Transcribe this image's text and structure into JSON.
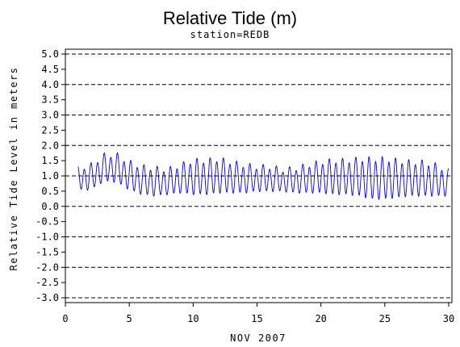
{
  "chart_data": {
    "type": "line",
    "title": "Relative Tide (m)",
    "subtitle": "station=REDB",
    "xlabel": "NOV 2007",
    "ylabel": "Relative Tide Level in meters",
    "xlim": [
      0,
      30
    ],
    "ylim": [
      -3.0,
      5.0
    ],
    "x_ticks": [
      "0",
      "5",
      "10",
      "15",
      "20",
      "25",
      "30"
    ],
    "y_ticks": [
      "-3.0",
      "-2.5",
      "-2.0",
      "-1.5",
      "-1.0",
      "-0.5",
      "0.0",
      "0.5",
      "1.0",
      "1.5",
      "2.0",
      "2.5",
      "3.0",
      "3.5",
      "4.0",
      "4.5",
      "5.0"
    ],
    "dashed_gridlines_y": [
      -3,
      -2,
      -1,
      0,
      1,
      2,
      3,
      4,
      5
    ],
    "grid": "horizontal dashed",
    "series": [
      {
        "color": "#0000cc",
        "cycles_per_day": 1.93,
        "x_start": 1.0,
        "x_end": 30.0,
        "daily_envelope": [
          {
            "day": 1,
            "mean": 0.9,
            "amplitude": 0.35
          },
          {
            "day": 2,
            "mean": 0.95,
            "amplitude": 0.4
          },
          {
            "day": 3,
            "mean": 1.25,
            "amplitude": 0.42
          },
          {
            "day": 4,
            "mean": 1.25,
            "amplitude": 0.45
          },
          {
            "day": 5,
            "mean": 1.0,
            "amplitude": 0.45
          },
          {
            "day": 6,
            "mean": 0.85,
            "amplitude": 0.45
          },
          {
            "day": 7,
            "mean": 0.8,
            "amplitude": 0.45
          },
          {
            "day": 8,
            "mean": 0.8,
            "amplitude": 0.4
          },
          {
            "day": 9,
            "mean": 0.9,
            "amplitude": 0.45
          },
          {
            "day": 10,
            "mean": 0.95,
            "amplitude": 0.55
          },
          {
            "day": 11,
            "mean": 0.95,
            "amplitude": 0.55
          },
          {
            "day": 12,
            "mean": 1.0,
            "amplitude": 0.55
          },
          {
            "day": 13,
            "mean": 0.95,
            "amplitude": 0.5
          },
          {
            "day": 14,
            "mean": 0.9,
            "amplitude": 0.45
          },
          {
            "day": 15,
            "mean": 0.9,
            "amplitude": 0.4
          },
          {
            "day": 16,
            "mean": 0.9,
            "amplitude": 0.4
          },
          {
            "day": 17,
            "mean": 0.85,
            "amplitude": 0.35
          },
          {
            "day": 18,
            "mean": 0.85,
            "amplitude": 0.4
          },
          {
            "day": 19,
            "mean": 0.9,
            "amplitude": 0.45
          },
          {
            "day": 20,
            "mean": 0.95,
            "amplitude": 0.5
          },
          {
            "day": 21,
            "mean": 0.95,
            "amplitude": 0.55
          },
          {
            "day": 22,
            "mean": 0.95,
            "amplitude": 0.55
          },
          {
            "day": 23,
            "mean": 0.95,
            "amplitude": 0.6
          },
          {
            "day": 24,
            "mean": 0.9,
            "amplitude": 0.65
          },
          {
            "day": 25,
            "mean": 0.9,
            "amplitude": 0.65
          },
          {
            "day": 26,
            "mean": 0.9,
            "amplitude": 0.6
          },
          {
            "day": 27,
            "mean": 0.9,
            "amplitude": 0.55
          },
          {
            "day": 28,
            "mean": 0.9,
            "amplitude": 0.55
          },
          {
            "day": 29,
            "mean": 0.85,
            "amplitude": 0.5
          },
          {
            "day": 30,
            "mean": 0.75,
            "amplitude": 0.4
          }
        ]
      }
    ]
  }
}
